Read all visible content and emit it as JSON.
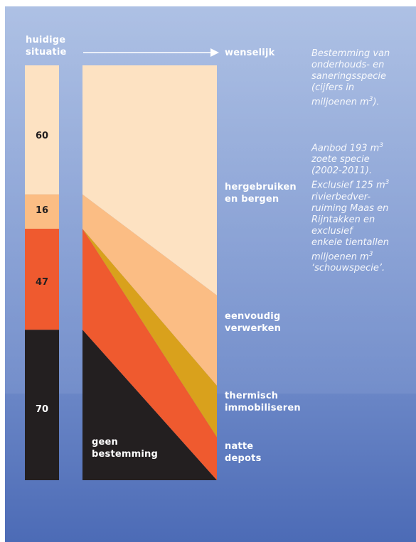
{
  "chart_data": {
    "type": "area",
    "left_label": "huidige situatie",
    "right_label": "wenselijk",
    "unit": "miljoenen m3",
    "current_bar": [
      {
        "name": "70",
        "value": 70,
        "color": "#231f20"
      },
      {
        "name": "47",
        "value": 47,
        "color": "#ef5a2f"
      },
      {
        "name": "16",
        "value": 16,
        "color": "#fbbd84"
      },
      {
        "name": "60",
        "value": 60,
        "color": "#fde2c2"
      }
    ],
    "desired_flow": [
      {
        "name": "geen bestemming",
        "left": 70,
        "right": 0,
        "color": "#231f20"
      },
      {
        "name": "natte depots",
        "left": 47,
        "right": 20,
        "color": "#ef5a2f"
      },
      {
        "name": "thermisch immobiliseren",
        "left": 0,
        "right": 24,
        "color": "#d9a11c"
      },
      {
        "name": "eenvoudig verwerken",
        "left": 16,
        "right": 42,
        "color": "#fbbd84"
      },
      {
        "name": "hergebruiken en bergen",
        "left": 60,
        "right": 107,
        "color": "#fde2c2"
      }
    ]
  },
  "labels": {
    "left_top_line1": "huidige",
    "left_top_line2": "situatie",
    "right_top": "wenselijk",
    "hergebruiken_1": "hergebruiken",
    "hergebruiken_2": "en bergen",
    "eenvoudig_1": "eenvoudig",
    "eenvoudig_2": "verwerken",
    "thermisch_1": "thermisch",
    "thermisch_2": "immobiliseren",
    "natte_1": "natte",
    "natte_2": "depots",
    "geen_1": "geen",
    "geen_2": "bestemming"
  },
  "note1": {
    "l1": "Bestemming van",
    "l2": "onderhouds- en",
    "l3": "saneringsspecie",
    "l4": "(cijfers in",
    "l5a": "miljoenen m",
    "l5sup": "3",
    "l5b": ")."
  },
  "note2": {
    "l1a": "Aanbod 193 m",
    "l1sup": "3",
    "l2": "zoete specie",
    "l3": "(2002-2011).",
    "l4a": "Exclusief 125 m",
    "l4sup": "3",
    "l5": "rivierbedver-",
    "l6": "ruiming Maas en",
    "l7": "Rijntakken en",
    "l8": "exclusief",
    "l9": "enkele tientallen",
    "l10a": "miljoenen m",
    "l10sup": "3",
    "l11": "‘schouwspecie’."
  },
  "colors": {
    "bg_top": "#a9bde2",
    "bg_bottom": "#4a6ab5",
    "panel_light": "#9fb5de"
  }
}
